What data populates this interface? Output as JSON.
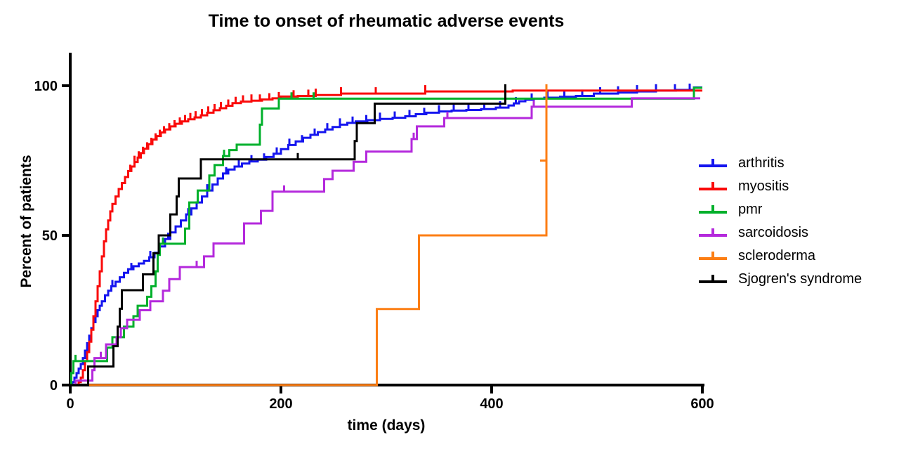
{
  "chart_data": {
    "type": "line",
    "subtype": "kaplan-meier-cumulative-incidence-step",
    "title": "Time to onset of rheumatic adverse events",
    "xlabel": "time (days)",
    "ylabel": "Percent of patients",
    "xlim": [
      0,
      600
    ],
    "ylim": [
      0,
      100
    ],
    "xticks": [
      0,
      200,
      400,
      600
    ],
    "yticks": [
      0,
      50,
      100
    ],
    "grid": false,
    "legend_position": "right",
    "axis_color": "#000000",
    "series": [
      {
        "name": "arthritis",
        "color": "#1515EF",
        "points": [
          [
            0,
            0
          ],
          [
            2,
            1
          ],
          [
            4,
            2.5
          ],
          [
            6,
            4
          ],
          [
            8,
            5.5
          ],
          [
            10,
            7
          ],
          [
            12,
            9
          ],
          [
            14,
            11.5
          ],
          [
            16,
            14
          ],
          [
            18,
            16.5
          ],
          [
            20,
            19
          ],
          [
            22,
            21
          ],
          [
            24,
            23
          ],
          [
            26,
            25
          ],
          [
            28,
            26.5
          ],
          [
            30,
            28
          ],
          [
            33,
            30
          ],
          [
            36,
            31.5
          ],
          [
            39,
            33
          ],
          [
            43,
            34.5
          ],
          [
            47,
            36
          ],
          [
            51,
            37.5
          ],
          [
            55,
            38.7
          ],
          [
            60,
            39.7
          ],
          [
            65,
            40.6
          ],
          [
            70,
            41.5
          ],
          [
            75,
            42.7
          ],
          [
            80,
            44.2
          ],
          [
            85,
            46.3
          ],
          [
            90,
            48.8
          ],
          [
            95,
            51
          ],
          [
            100,
            53
          ],
          [
            105,
            55
          ],
          [
            110,
            57
          ],
          [
            115,
            59
          ],
          [
            120,
            61
          ],
          [
            125,
            63
          ],
          [
            130,
            65
          ],
          [
            135,
            67
          ],
          [
            140,
            69
          ],
          [
            145,
            70.7
          ],
          [
            150,
            72
          ],
          [
            156,
            73
          ],
          [
            163,
            74
          ],
          [
            170,
            74.7
          ],
          [
            178,
            75.3
          ],
          [
            186,
            76.2
          ],
          [
            193,
            77.3
          ],
          [
            200,
            78.8
          ],
          [
            207,
            80.2
          ],
          [
            214,
            81.4
          ],
          [
            221,
            82.6
          ],
          [
            228,
            83.6
          ],
          [
            235,
            84.5
          ],
          [
            242,
            85.4
          ],
          [
            249,
            86.2
          ],
          [
            256,
            87
          ],
          [
            263,
            87.6
          ],
          [
            271,
            88.1
          ],
          [
            282,
            88.5
          ],
          [
            294,
            88.9
          ],
          [
            306,
            89.3
          ],
          [
            318,
            89.8
          ],
          [
            328,
            90.5
          ],
          [
            338,
            91
          ],
          [
            350,
            91.4
          ],
          [
            362,
            91.7
          ],
          [
            376,
            91.9
          ],
          [
            390,
            92.2
          ],
          [
            404,
            92.7
          ],
          [
            416,
            93.4
          ],
          [
            421,
            94.1
          ],
          [
            426,
            94.8
          ],
          [
            432,
            95.3
          ],
          [
            440,
            95.7
          ],
          [
            450,
            96
          ],
          [
            465,
            96.3
          ],
          [
            480,
            96.6
          ],
          [
            497,
            97.4
          ],
          [
            520,
            97.7
          ],
          [
            538,
            98.1
          ],
          [
            556,
            98.4
          ],
          [
            575,
            98.6
          ],
          [
            592,
            99.4
          ]
        ],
        "end": 600,
        "ticks": [
          22,
          40,
          58,
          76,
          93,
          112,
          130,
          148,
          160,
          172,
          184,
          196,
          208,
          220,
          232,
          244,
          256,
          268,
          281,
          294,
          308,
          322,
          336,
          350,
          364,
          378,
          393,
          408,
          423,
          438,
          453,
          469,
          486,
          503,
          520,
          538,
          556,
          574,
          588
        ]
      },
      {
        "name": "myositis",
        "color": "#FA0A0A",
        "points": [
          [
            0,
            0
          ],
          [
            8,
            1
          ],
          [
            10,
            2.5
          ],
          [
            12,
            5
          ],
          [
            14,
            8
          ],
          [
            16,
            11
          ],
          [
            18,
            14.5
          ],
          [
            20,
            18.5
          ],
          [
            22,
            23
          ],
          [
            24,
            28
          ],
          [
            26,
            33
          ],
          [
            28,
            38
          ],
          [
            30,
            43
          ],
          [
            32,
            48
          ],
          [
            34,
            52
          ],
          [
            36,
            55
          ],
          [
            38,
            58
          ],
          [
            40,
            60.5
          ],
          [
            43,
            63
          ],
          [
            46,
            65.5
          ],
          [
            49,
            67.5
          ],
          [
            52,
            69.5
          ],
          [
            55,
            71.5
          ],
          [
            58,
            73
          ],
          [
            61,
            74.5
          ],
          [
            64,
            76
          ],
          [
            67,
            77.5
          ],
          [
            70,
            79
          ],
          [
            74,
            80.5
          ],
          [
            78,
            82
          ],
          [
            82,
            83.2
          ],
          [
            86,
            84.4
          ],
          [
            90,
            85.4
          ],
          [
            95,
            86.4
          ],
          [
            100,
            87.3
          ],
          [
            106,
            88.1
          ],
          [
            112,
            88.8
          ],
          [
            118,
            89.4
          ],
          [
            124,
            90.1
          ],
          [
            130,
            91
          ],
          [
            136,
            91.8
          ],
          [
            142,
            92.5
          ],
          [
            148,
            93.3
          ],
          [
            154,
            94.2
          ],
          [
            162,
            94.7
          ],
          [
            172,
            95
          ],
          [
            182,
            95.4
          ],
          [
            192,
            95.8
          ],
          [
            200,
            96.4
          ],
          [
            216,
            96.6
          ],
          [
            233,
            96.9
          ],
          [
            257,
            97.4
          ],
          [
            337,
            98.1
          ],
          [
            420,
            98.4
          ]
        ],
        "end": 600,
        "ticks": [
          57,
          61,
          65,
          69,
          73,
          77,
          81,
          85,
          89,
          94,
          99,
          104,
          109,
          114,
          119,
          125,
          131,
          137,
          143,
          150,
          157,
          164,
          172,
          180,
          189,
          198,
          212,
          226,
          233,
          257,
          290,
          337
        ]
      },
      {
        "name": "pmr",
        "color": "#00B02B",
        "points": [
          [
            0,
            0
          ],
          [
            1,
            4
          ],
          [
            3,
            8
          ],
          [
            35,
            12.5
          ],
          [
            40,
            16
          ],
          [
            51,
            19.5
          ],
          [
            60,
            23
          ],
          [
            64,
            26.5
          ],
          [
            73,
            29.5
          ],
          [
            77,
            33
          ],
          [
            81,
            38
          ],
          [
            83,
            43.5
          ],
          [
            85,
            47.2
          ],
          [
            109,
            52.3
          ],
          [
            113,
            61
          ],
          [
            121,
            65
          ],
          [
            132,
            70
          ],
          [
            137,
            73.5
          ],
          [
            145,
            76.5
          ],
          [
            151,
            78.5
          ],
          [
            158,
            80.3
          ],
          [
            180,
            87
          ],
          [
            182,
            92.4
          ],
          [
            198,
            95.7
          ],
          [
            592,
            99.3
          ]
        ],
        "end": 600,
        "ticks": [
          5,
          88,
          146,
          210,
          231
        ]
      },
      {
        "name": "sarcoidosis",
        "color": "#B429DC",
        "points": [
          [
            0,
            0
          ],
          [
            5,
            1.5
          ],
          [
            21,
            5
          ],
          [
            23,
            9
          ],
          [
            34,
            13.6
          ],
          [
            44,
            16
          ],
          [
            48,
            19
          ],
          [
            54,
            21.8
          ],
          [
            66,
            25
          ],
          [
            76,
            28
          ],
          [
            88,
            31.5
          ],
          [
            94,
            35.4
          ],
          [
            104,
            39.4
          ],
          [
            127,
            43
          ],
          [
            136,
            47.3
          ],
          [
            165,
            54
          ],
          [
            181,
            58.2
          ],
          [
            192,
            64.6
          ],
          [
            241,
            68.8
          ],
          [
            249,
            71.6
          ],
          [
            269,
            74.6
          ],
          [
            281,
            78
          ],
          [
            324,
            82.2
          ],
          [
            329,
            86.4
          ],
          [
            355,
            89.2
          ],
          [
            438,
            93
          ],
          [
            533,
            95.8
          ]
        ],
        "end": 598,
        "ticks": [
          29,
          120,
          203,
          326,
          358,
          440
        ]
      },
      {
        "name": "scleroderma",
        "color": "#FC7E14",
        "points": [
          [
            0,
            0
          ],
          [
            291,
            25.4
          ],
          [
            331,
            50
          ],
          [
            452,
            100.5
          ]
        ],
        "end": 452,
        "ticks": [
          [
            452,
            75
          ]
        ]
      },
      {
        "name": "Sjogren's syndrome",
        "color": "#000000",
        "points": [
          [
            0,
            0
          ],
          [
            17,
            6.2
          ],
          [
            41,
            13
          ],
          [
            45,
            19.5
          ],
          [
            47,
            25.5
          ],
          [
            49,
            31.7
          ],
          [
            69,
            37
          ],
          [
            79,
            44
          ],
          [
            84,
            50
          ],
          [
            95,
            57
          ],
          [
            101,
            63
          ],
          [
            103,
            69
          ],
          [
            124,
            75.4
          ],
          [
            270,
            81.5
          ],
          [
            272,
            87.5
          ],
          [
            289,
            94
          ],
          [
            413,
            100.5
          ]
        ],
        "end": 413,
        "ticks": [
          216
        ]
      }
    ]
  }
}
